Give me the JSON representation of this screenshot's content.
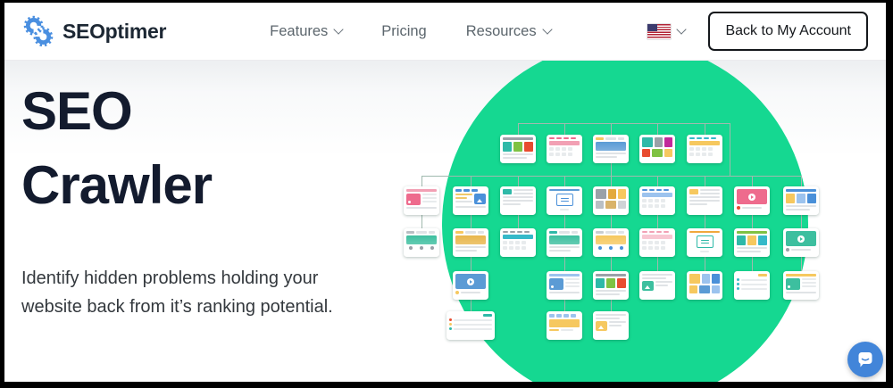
{
  "nav": {
    "logo": {
      "text": "SEOptimer",
      "icon": "seoptimer-gears-icon",
      "color": "#4a8fe0",
      "text_color": "#1c2733"
    },
    "items": [
      {
        "label": "Features",
        "dropdown": true
      },
      {
        "label": "Pricing",
        "dropdown": false
      },
      {
        "label": "Resources",
        "dropdown": true
      }
    ],
    "locale": {
      "flag": "us-flag"
    },
    "account_button": {
      "label": "Back to My Account"
    }
  },
  "hero": {
    "title": "SEO Crawler",
    "title_color": "#131b2e",
    "description": "Identify hidden problems holding your website back from it’s ranking potential."
  },
  "illustration": {
    "circle_color": "#15d891",
    "connector_color": "#a0b9ae",
    "cards": [
      {
        "row": 1,
        "col": 2,
        "kind": "blocks",
        "colors": [
          "#9aa1a8",
          "#2fb9a8",
          "#7fc243",
          "#e84c30"
        ]
      },
      {
        "row": 1,
        "col": 3,
        "kind": "table",
        "colors": [
          "#ee6b8d",
          "#f2a0b4"
        ]
      },
      {
        "row": 1,
        "col": 4,
        "kind": "banner",
        "colors": [
          "#f6c85f",
          "#5b9bd5"
        ]
      },
      {
        "row": 1,
        "col": 5,
        "kind": "mosaic",
        "colors": [
          "#2fb9a8",
          "#9aa1a8",
          "#c2299b",
          "#e84c30",
          "#7fc243",
          "#f6c85f"
        ]
      },
      {
        "row": 1,
        "col": 6,
        "kind": "table",
        "colors": [
          "#35b9c9",
          "#f6c85f"
        ]
      },
      {
        "row": 2,
        "col": 0,
        "kind": "rss",
        "colors": [
          "#ee6b8d",
          "#f2a0b4"
        ]
      },
      {
        "row": 2,
        "col": 1,
        "kind": "image",
        "colors": [
          "#4a90d9",
          "#f0c96a"
        ]
      },
      {
        "row": 2,
        "col": 2,
        "kind": "lines",
        "colors": [
          "#2fb9a8"
        ]
      },
      {
        "row": 2,
        "col": 3,
        "kind": "modal",
        "colors": [
          "#4a90d9",
          "#5b9bd5"
        ]
      },
      {
        "row": 2,
        "col": 4,
        "kind": "mosaic",
        "colors": [
          "#9aa1a8",
          "#e3aa3e",
          "#f6c85f",
          "#b9bfc4",
          "#d9b36a",
          "#cfd3d6"
        ]
      },
      {
        "row": 2,
        "col": 5,
        "kind": "table",
        "colors": [
          "#4a90d9",
          "#9cc3ee"
        ]
      },
      {
        "row": 2,
        "col": 6,
        "kind": "lines",
        "colors": [
          "#f6c85f"
        ]
      },
      {
        "row": 2,
        "col": 7,
        "kind": "video",
        "colors": [
          "#ee6b8d",
          "#e84c30"
        ]
      },
      {
        "row": 2,
        "col": 8,
        "kind": "blocks",
        "colors": [
          "#4a90d9",
          "#f6c85f",
          "#9cc3ee",
          "#4a90d9"
        ]
      },
      {
        "row": 3,
        "col": 0,
        "kind": "banner",
        "colors": [
          "#b9bfc4",
          "#3dbf9f",
          "#9aa1a8"
        ],
        "dots": true
      },
      {
        "row": 3,
        "col": 1,
        "kind": "banner",
        "colors": [
          "#f6c85f",
          "#e8b64c"
        ]
      },
      {
        "row": 3,
        "col": 2,
        "kind": "table",
        "colors": [
          "#9aa1a8",
          "#35b9c9"
        ]
      },
      {
        "row": 3,
        "col": 3,
        "kind": "banner",
        "colors": [
          "#2fb9a8",
          "#3dbf9f"
        ]
      },
      {
        "row": 3,
        "col": 4,
        "kind": "banner",
        "colors": [
          "#c9ced2",
          "#f6c85f",
          "#4a90d9"
        ],
        "dots": true
      },
      {
        "row": 3,
        "col": 5,
        "kind": "table",
        "colors": [
          "#f2a0b4",
          "#f8c7d2"
        ]
      },
      {
        "row": 3,
        "col": 6,
        "kind": "modal",
        "colors": [
          "#2fb9a8",
          "#f0a83c"
        ]
      },
      {
        "row": 3,
        "col": 7,
        "kind": "blocks",
        "colors": [
          "#7fc243",
          "#2fb9a8",
          "#f6c85f",
          "#35b9c9"
        ]
      },
      {
        "row": 3,
        "col": 8,
        "kind": "video",
        "colors": [
          "#3dbf9f",
          "#9aa1a8"
        ]
      },
      {
        "row": 4,
        "col": 1,
        "kind": "video",
        "colors": [
          "#5b9bd5",
          "#f6c85f"
        ]
      },
      {
        "row": 4,
        "col": 3,
        "kind": "rss",
        "colors": [
          "#5b9bd5",
          "#9cc3ee"
        ]
      },
      {
        "row": 4,
        "col": 4,
        "kind": "blocks",
        "colors": [
          "#9aa1a8",
          "#2fb9a8",
          "#7fc243",
          "#e84c30"
        ]
      },
      {
        "row": 4,
        "col": 5,
        "kind": "photo",
        "colors": [
          "#3dbf9f"
        ]
      },
      {
        "row": 4,
        "col": 6,
        "kind": "mosaic",
        "colors": [
          "#f6c85f",
          "#9cc3ee",
          "#4a90d9",
          "#f6c85f",
          "#5b9bd5",
          "#9cc3ee"
        ]
      },
      {
        "row": 4,
        "col": 7,
        "kind": "list",
        "colors": [
          "#f6c85f",
          "#35b9c9",
          "#35b9c9",
          "#35b9c9"
        ]
      },
      {
        "row": 4,
        "col": 8,
        "kind": "rss",
        "colors": [
          "#3dbf9f",
          "#f6c85f"
        ]
      },
      {
        "row": 5,
        "col": 1,
        "kind": "list",
        "colors": [
          "#2fb9a8",
          "#e84c30",
          "#f6c85f",
          "#2fb9a8"
        ],
        "wide": true
      },
      {
        "row": 5,
        "col": 3,
        "kind": "grid",
        "colors": [
          "#9cc3ee",
          "#f6c85f"
        ]
      },
      {
        "row": 5,
        "col": 4,
        "kind": "photo",
        "colors": [
          "#f6c85f"
        ]
      }
    ]
  },
  "chat": {
    "icon": "chat-bubble-icon",
    "color": "#4285d9"
  }
}
